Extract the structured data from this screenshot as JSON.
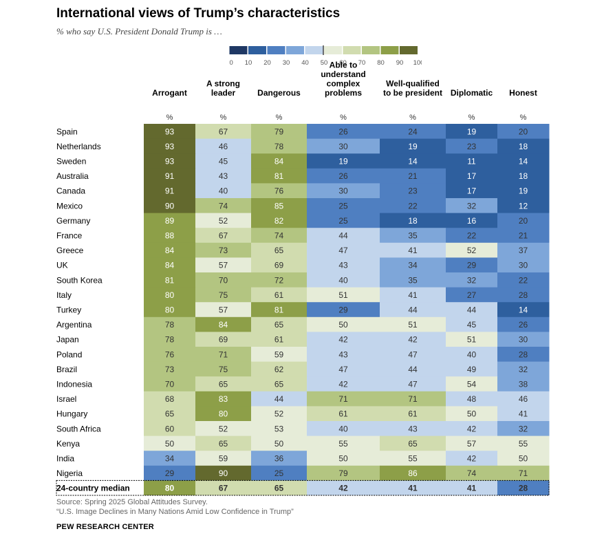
{
  "header": {
    "title": "International views of Trump’s characteristics",
    "subtitle": "% who say U.S. President Donald Trump is …"
  },
  "legend": {
    "ticks": [
      "0",
      "10",
      "20",
      "30",
      "40",
      "50",
      "60",
      "70",
      "80",
      "90",
      "100"
    ],
    "colors": [
      "#1f3864",
      "#2e5f9e",
      "#4f7fc1",
      "#7ea6d9",
      "#c2d5ec",
      "#e6ecd8",
      "#d1dcaf",
      "#b3c581",
      "#8d9f48",
      "#63692e"
    ]
  },
  "chart_data": {
    "type": "heatmap",
    "columns": [
      "Arrogant",
      "A strong leader",
      "Dangerous",
      "Able to understand complex problems",
      "Well-qualified to be president",
      "Diplomatic",
      "Honest"
    ],
    "column_header_lines": [
      [
        "Arrogant"
      ],
      [
        "A strong",
        "leader"
      ],
      [
        "Dangerous"
      ],
      [
        "Able to",
        "understand",
        "complex",
        "problems"
      ],
      [
        "Well-qualified",
        "to be president"
      ],
      [
        "Diplomatic"
      ],
      [
        "Honest"
      ]
    ],
    "unit_label": "%",
    "rows": [
      {
        "country": "Spain",
        "values": [
          93,
          67,
          79,
          26,
          24,
          19,
          20
        ]
      },
      {
        "country": "Netherlands",
        "values": [
          93,
          46,
          78,
          30,
          19,
          23,
          18
        ]
      },
      {
        "country": "Sweden",
        "values": [
          93,
          45,
          84,
          19,
          14,
          11,
          14
        ]
      },
      {
        "country": "Australia",
        "values": [
          91,
          43,
          81,
          26,
          21,
          17,
          18
        ]
      },
      {
        "country": "Canada",
        "values": [
          91,
          40,
          76,
          30,
          23,
          17,
          19
        ]
      },
      {
        "country": "Mexico",
        "values": [
          90,
          74,
          85,
          25,
          22,
          32,
          12
        ]
      },
      {
        "country": "Germany",
        "values": [
          89,
          52,
          82,
          25,
          18,
          16,
          20
        ]
      },
      {
        "country": "France",
        "values": [
          88,
          67,
          74,
          44,
          35,
          22,
          21
        ]
      },
      {
        "country": "Greece",
        "values": [
          84,
          73,
          65,
          47,
          41,
          52,
          37
        ]
      },
      {
        "country": "UK",
        "values": [
          84,
          57,
          69,
          43,
          34,
          29,
          30
        ]
      },
      {
        "country": "South Korea",
        "values": [
          81,
          70,
          72,
          40,
          35,
          32,
          22
        ]
      },
      {
        "country": "Italy",
        "values": [
          80,
          75,
          61,
          51,
          41,
          27,
          28
        ]
      },
      {
        "country": "Turkey",
        "values": [
          80,
          57,
          81,
          29,
          44,
          44,
          14
        ]
      },
      {
        "country": "Argentina",
        "values": [
          78,
          84,
          65,
          50,
          51,
          45,
          26
        ]
      },
      {
        "country": "Japan",
        "values": [
          78,
          69,
          61,
          42,
          42,
          51,
          30
        ]
      },
      {
        "country": "Poland",
        "values": [
          76,
          71,
          59,
          43,
          47,
          40,
          28
        ]
      },
      {
        "country": "Brazil",
        "values": [
          73,
          75,
          62,
          47,
          44,
          49,
          32
        ]
      },
      {
        "country": "Indonesia",
        "values": [
          70,
          65,
          65,
          42,
          47,
          54,
          38
        ]
      },
      {
        "country": "Israel",
        "values": [
          68,
          83,
          44,
          71,
          71,
          48,
          46
        ]
      },
      {
        "country": "Hungary",
        "values": [
          65,
          80,
          52,
          61,
          61,
          50,
          41
        ]
      },
      {
        "country": "South Africa",
        "values": [
          60,
          52,
          53,
          40,
          43,
          42,
          32
        ]
      },
      {
        "country": "Kenya",
        "values": [
          50,
          65,
          50,
          55,
          65,
          57,
          55
        ]
      },
      {
        "country": "India",
        "values": [
          34,
          59,
          36,
          50,
          55,
          42,
          50
        ]
      },
      {
        "country": "Nigeria",
        "values": [
          29,
          90,
          25,
          79,
          86,
          74,
          71
        ]
      }
    ],
    "median": {
      "label": "24-country median",
      "values": [
        80,
        67,
        65,
        42,
        41,
        41,
        28
      ]
    },
    "scale": {
      "min": 0,
      "max": 100,
      "bin": 10
    }
  },
  "footer": {
    "source": "Source: Spring 2025 Global Attitudes Survey.",
    "report": "“U.S. Image Declines in Many Nations Amid Low Confidence in Trump”",
    "org": "PEW RESEARCH CENTER"
  }
}
